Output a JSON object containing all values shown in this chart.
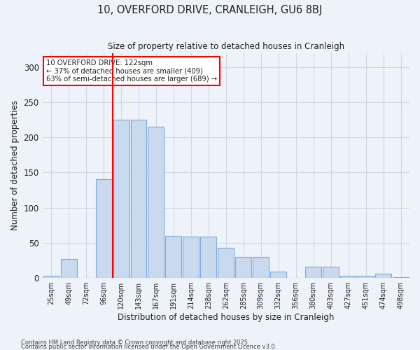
{
  "title_line1": "10, OVERFORD DRIVE, CRANLEIGH, GU6 8BJ",
  "title_line2": "Size of property relative to detached houses in Cranleigh",
  "xlabel": "Distribution of detached houses by size in Cranleigh",
  "ylabel": "Number of detached properties",
  "bin_labels": [
    "25sqm",
    "49sqm",
    "72sqm",
    "96sqm",
    "120sqm",
    "143sqm",
    "167sqm",
    "191sqm",
    "214sqm",
    "238sqm",
    "262sqm",
    "285sqm",
    "309sqm",
    "332sqm",
    "356sqm",
    "380sqm",
    "403sqm",
    "427sqm",
    "451sqm",
    "474sqm",
    "498sqm"
  ],
  "bar_values": [
    3,
    27,
    0,
    140,
    225,
    225,
    215,
    60,
    59,
    59,
    43,
    30,
    30,
    9,
    0,
    16,
    16,
    3,
    3,
    6,
    1
  ],
  "bar_color": "#c9d9ee",
  "bar_edge_color": "#7aabe0",
  "vline_x_pos": 3.5,
  "annotation_line1": "10 OVERFORD DRIVE: 122sqm",
  "annotation_line2": "← 37% of detached houses are smaller (409)",
  "annotation_line3": "63% of semi-detached houses are larger (689) →",
  "annotation_box_color": "white",
  "annotation_box_edge": "red",
  "vline_color": "red",
  "ylim": [
    0,
    320
  ],
  "yticks": [
    0,
    50,
    100,
    150,
    200,
    250,
    300
  ],
  "footer_line1": "Contains HM Land Registry data © Crown copyright and database right 2025.",
  "footer_line2": "Contains public sector information licensed under the Open Government Licence v3.0.",
  "bg_color": "#eef2f9",
  "grid_color": "#d0d8e8",
  "text_color": "#222222"
}
